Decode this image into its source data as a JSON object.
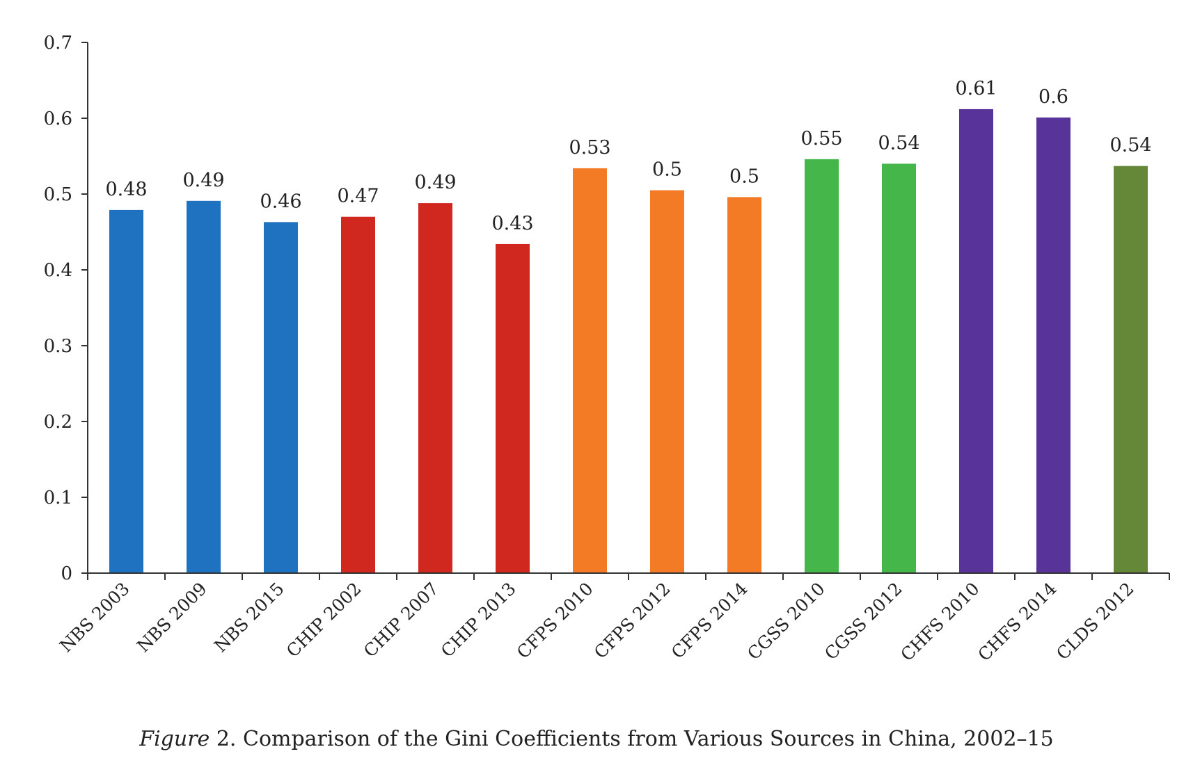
{
  "caption": {
    "figure_word": "Figure",
    "figure_number_and_text": " 2. Comparison of the Gini Coefficients from Various Sources in China, 2002–15"
  },
  "colors": {
    "NBS": "#1f72bf",
    "CHIP": "#d0281e",
    "CFPS": "#f47b26",
    "CGSS": "#44b64a",
    "CHFS": "#58349a",
    "CLDS": "#648838"
  },
  "chart_data": {
    "type": "bar",
    "title": "",
    "xlabel": "",
    "ylabel": "",
    "ylim": [
      0,
      0.7
    ],
    "yticks": [
      "0",
      "0.1",
      "0.2",
      "0.3",
      "0.4",
      "0.5",
      "0.6",
      "0.7"
    ],
    "grid": false,
    "legend": "none",
    "categories": [
      "NBS 2003",
      "NBS 2009",
      "NBS 2015",
      "CHIP 2002",
      "CHIP 2007",
      "CHIP 2013",
      "CFPS 2010",
      "CFPS 2012",
      "CFPS 2014",
      "CGSS 2010",
      "CGSS 2012",
      "CHFS 2010",
      "CHFS 2014",
      "CLDS 2012"
    ],
    "values": [
      0.48,
      0.49,
      0.46,
      0.47,
      0.49,
      0.43,
      0.53,
      0.5,
      0.5,
      0.55,
      0.54,
      0.61,
      0.6,
      0.54
    ],
    "bar_heights": [
      0.479,
      0.491,
      0.463,
      0.47,
      0.488,
      0.434,
      0.534,
      0.505,
      0.496,
      0.546,
      0.54,
      0.612,
      0.601,
      0.537
    ],
    "data_labels": [
      "0.48",
      "0.49",
      "0.46",
      "0.47",
      "0.49",
      "0.43",
      "0.53",
      "0.5",
      "0.5",
      "0.55",
      "0.54",
      "0.61",
      "0.6",
      "0.54"
    ],
    "bar_groups": [
      "NBS",
      "NBS",
      "NBS",
      "CHIP",
      "CHIP",
      "CHIP",
      "CFPS",
      "CFPS",
      "CFPS",
      "CGSS",
      "CGSS",
      "CHFS",
      "CHFS",
      "CLDS"
    ]
  }
}
